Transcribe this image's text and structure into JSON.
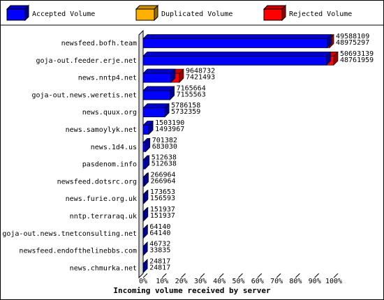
{
  "chart_data": {
    "type": "bar3d",
    "legend": [
      {
        "name": "Accepted Volume",
        "color": "#0000ff"
      },
      {
        "name": "Duplicated Volume",
        "color": "#ffb000"
      },
      {
        "name": "Rejected Volume",
        "color": "#ff0000"
      }
    ],
    "categories": [
      "newsfeed.bofh.team",
      "goja-out.feeder.erje.net",
      "news.nntp4.net",
      "goja-out.news.weretis.net",
      "news.quux.org",
      "news.samoylyk.net",
      "news.1d4.us",
      "pasdenom.info",
      "newsfeed.dotsrc.org",
      "news.furie.org.uk",
      "nntp.terraraq.uk",
      "goja-out.news.tnetconsulting.net",
      "newsfeed.endofthelinebbs.com",
      "news.chmurka.net"
    ],
    "totals": [
      49588109,
      50693139,
      9648732,
      7165664,
      5786158,
      1503190,
      701382,
      512638,
      266964,
      173653,
      151937,
      64140,
      46732,
      24817
    ],
    "accepted": [
      48975297,
      48761959,
      7421493,
      7155563,
      5732359,
      1493967,
      683030,
      512638,
      266964,
      156593,
      151937,
      64140,
      33835,
      24817
    ],
    "xlim": [
      0,
      100
    ],
    "xticks": [
      {
        "value": 0,
        "label": "0%"
      },
      {
        "value": 10,
        "label": "10%"
      },
      {
        "value": 20,
        "label": "20%"
      },
      {
        "value": 30,
        "label": "30%"
      },
      {
        "value": 40,
        "label": "40%"
      },
      {
        "value": 50,
        "label": "50%"
      },
      {
        "value": 60,
        "label": "60%"
      },
      {
        "value": 70,
        "label": "70%"
      },
      {
        "value": 80,
        "label": "80%"
      },
      {
        "value": 90,
        "label": "90%"
      },
      {
        "value": 100,
        "label": "100%"
      }
    ],
    "xlabel": "Incoming volume received by server"
  }
}
